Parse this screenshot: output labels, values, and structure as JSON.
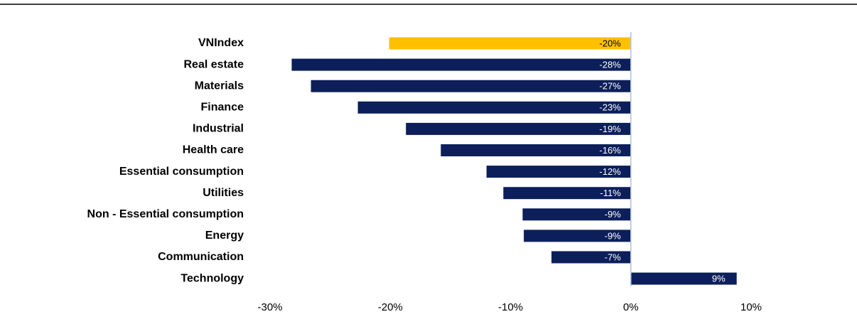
{
  "chart_data": {
    "type": "barh",
    "categories": [
      "VNIndex",
      "Real estate",
      "Materials",
      "Finance",
      "Industrial",
      "Health care",
      "Essential  consumption",
      "Utilities",
      "Non - Essential  consumption",
      "Energy",
      "Communication",
      "Technology"
    ],
    "values": [
      -20.1,
      -28.2,
      -26.6,
      -22.7,
      -18.7,
      -15.8,
      -12.0,
      -10.6,
      -9.0,
      -8.9,
      -6.6,
      8.8
    ],
    "value_labels": [
      "-20%",
      "-28%",
      "-27%",
      "-23%",
      "-19%",
      "-16%",
      "-12%",
      "-11%",
      "-9%",
      "-9%",
      "-7%",
      "9%"
    ],
    "colors": [
      "#ffc000",
      "#0c1f5b",
      "#0c1f5b",
      "#0c1f5b",
      "#0c1f5b",
      "#0c1f5b",
      "#0c1f5b",
      "#0c1f5b",
      "#0c1f5b",
      "#0c1f5b",
      "#0c1f5b",
      "#0c1f5b"
    ],
    "xlim": [
      -30,
      10
    ],
    "xticks": [
      {
        "value": -30,
        "label": "-30%"
      },
      {
        "value": -20,
        "label": "-20%"
      },
      {
        "value": -10,
        "label": "-10%"
      },
      {
        "value": 0,
        "label": "0%"
      },
      {
        "value": 10,
        "label": "10%"
      }
    ]
  }
}
